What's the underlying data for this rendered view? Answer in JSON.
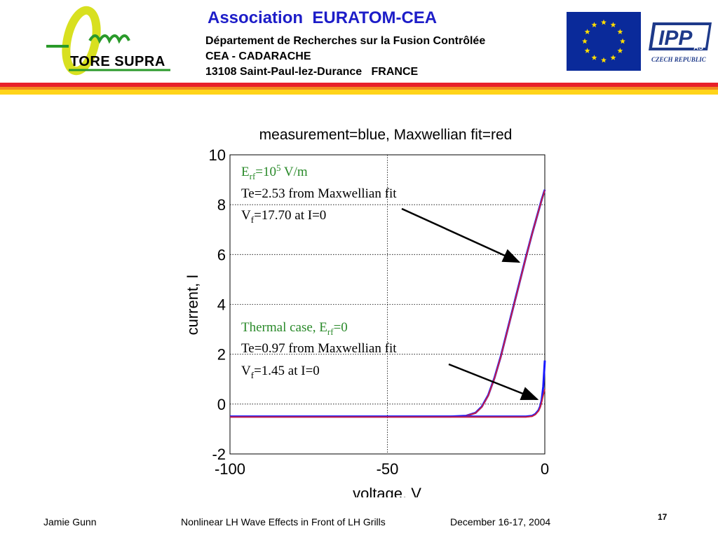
{
  "header": {
    "logo_text": "TORE SUPRA",
    "association": "Association  EURATOM-CEA",
    "line1": "Département de Recherches sur la Fusion Contrôlée",
    "line2": "CEA - CADARACHE",
    "line3": "13108 Saint-Paul-lez-Durance   FRANCE",
    "ipp_text": "IPP",
    "ipp_sub": "AS",
    "ipp_country": "CZECH REPUBLIC",
    "eu_star_color": "#ffdd00",
    "eu_blue": "#0a2a9a"
  },
  "stripes": {
    "red": "#e8202a",
    "orange": "#f28a1e",
    "yellow": "#ffd41a"
  },
  "chart_data": {
    "type": "line",
    "title": "measurement=blue,    Maxwellian fit=red",
    "xlabel": "voltage, V",
    "ylabel": "current, I",
    "xlim": [
      -100,
      0
    ],
    "ylim": [
      -2,
      10
    ],
    "xticks": [
      -100,
      -50,
      0
    ],
    "yticks": [
      -2,
      0,
      2,
      4,
      6,
      8,
      10
    ],
    "xtick_labels": [
      "-100",
      "-50",
      "0"
    ],
    "ytick_labels": [
      "-2",
      "0",
      "2",
      "4",
      "6",
      "8",
      "10"
    ],
    "grid": true,
    "series": [
      {
        "name": "measurement",
        "color": "#1a1aff",
        "x": [
          -100,
          -30,
          -25,
          -22,
          -20,
          -18,
          -16,
          -14,
          -12,
          -10,
          -8,
          -6,
          -4,
          -2,
          -1,
          0
        ],
        "y": [
          -0.5,
          -0.5,
          -0.47,
          -0.35,
          -0.1,
          0.35,
          1.05,
          1.9,
          2.9,
          3.9,
          4.9,
          5.9,
          6.85,
          7.75,
          8.2,
          8.6
        ]
      },
      {
        "name": "Maxwellian fit",
        "color": "#d0203a",
        "x": [
          -100,
          -30,
          -25,
          -22,
          -20,
          -18,
          -16,
          -14,
          -12,
          -10,
          -8,
          -6,
          -4,
          -2,
          -1,
          0
        ],
        "y": [
          -0.5,
          -0.5,
          -0.47,
          -0.36,
          -0.12,
          0.33,
          1.03,
          1.88,
          2.88,
          3.88,
          4.88,
          5.88,
          6.84,
          7.74,
          8.18,
          8.58
        ]
      },
      {
        "name": "measurement",
        "color": "#1a1aff",
        "x": [
          -100,
          -6,
          -4,
          -3,
          -2,
          -1.5,
          -1,
          -0.5,
          0
        ],
        "y": [
          -0.5,
          -0.5,
          -0.47,
          -0.4,
          -0.25,
          -0.1,
          0.15,
          0.7,
          1.75
        ]
      },
      {
        "name": "Maxwellian fit",
        "color": "#d0203a",
        "x": [
          -100,
          -6,
          -4,
          -3,
          -2,
          -1.5,
          -1,
          -0.5,
          0
        ],
        "y": [
          -0.52,
          -0.52,
          -0.49,
          -0.42,
          -0.28,
          -0.14,
          0.08,
          0.35,
          0.6
        ]
      }
    ],
    "annotations": [
      {
        "lines": [
          "E_rf=10^5 V/m",
          "Te=2.53 from Maxwellian fit",
          "V_f=17.70 at I=0"
        ],
        "first_line_color": "#2a8a2a"
      },
      {
        "lines": [
          "Thermal case, E_rf=0",
          "Te=0.97 from Maxwellian fit",
          "V_f=1.45 at I=0"
        ],
        "first_line_color": "#2a8a2a"
      }
    ],
    "annotation_parts": {
      "a1_E": "E",
      "a1_rf": "rf",
      "a1_eq": "=10",
      "a1_sup": "5",
      "a1_unit": " V/m",
      "a1_te": "Te=2.53 from Maxwellian fit",
      "a1_V": "V",
      "a1_f": "f",
      "a1_vf": "=17.70 at I=0",
      "a2_text": "Thermal case, E",
      "a2_rf": "rf",
      "a2_eq": "=0",
      "a2_te": "Te=0.97 from Maxwellian fit",
      "a2_V": "V",
      "a2_f": "f",
      "a2_vf": "=1.45 at I=0"
    }
  },
  "footer": {
    "author": "Jamie Gunn",
    "talk": "Nonlinear LH Wave Effects in Front of LH Grills",
    "date": "December 16-17, 2004",
    "page": "17"
  }
}
